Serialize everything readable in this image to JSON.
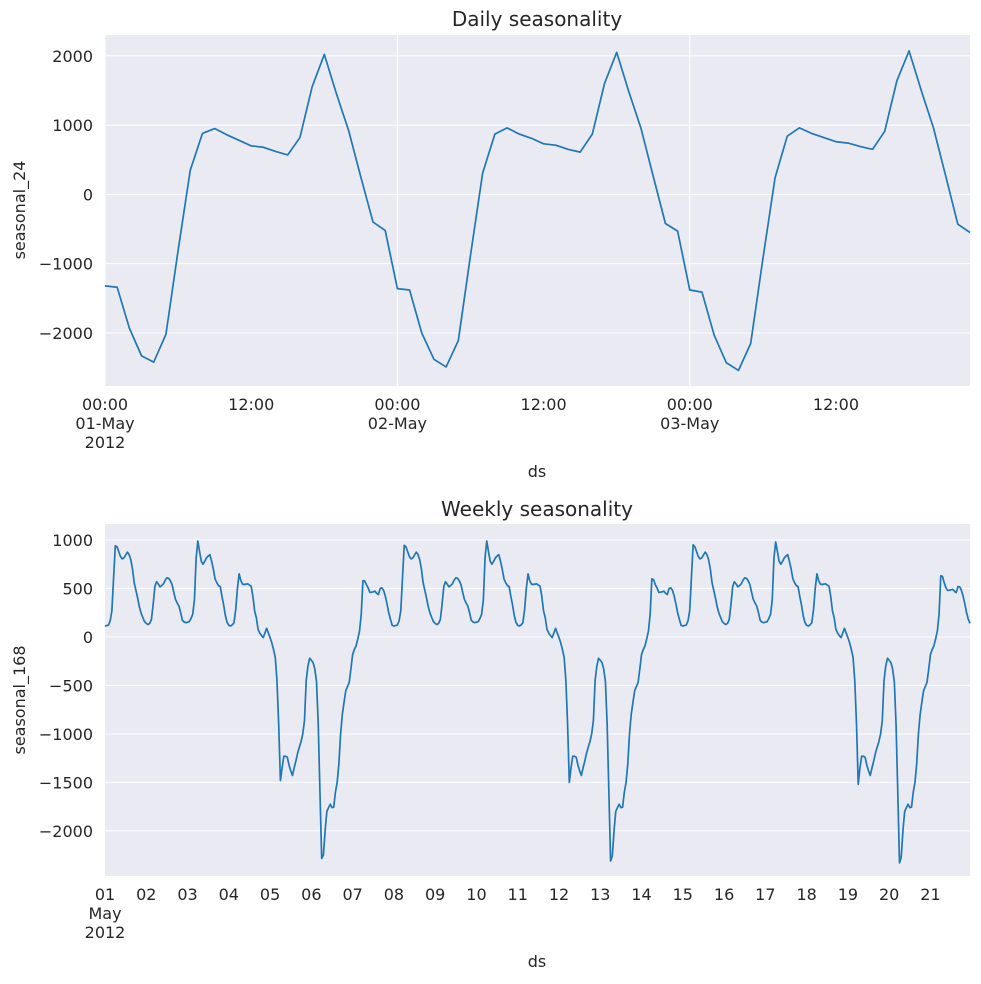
{
  "colors": {
    "plot_bg": "#eaeaf2",
    "grid": "#ffffff",
    "line": "#1f77b4",
    "text": "#262626"
  },
  "chart_data": [
    {
      "type": "line",
      "title": "Daily seasonality",
      "xlabel": "ds",
      "ylabel": "seasonal_24",
      "x_start": "2012-05-01 00:00",
      "x_freq": "1H",
      "xlim_hours": [
        0,
        71
      ],
      "ylim": [
        -2765,
        2300
      ],
      "yticks": [
        -2000,
        -1000,
        0,
        1000,
        2000
      ],
      "ytick_labels": [
        "−2000",
        "−1000",
        "0",
        "1000",
        "2000"
      ],
      "xticks_hours": [
        0,
        12,
        24,
        36,
        48,
        60
      ],
      "xtick_labels": [
        [
          "00:00",
          "01-May",
          "2012"
        ],
        [
          "12:00"
        ],
        [
          "00:00",
          "02-May"
        ],
        [
          "12:00"
        ],
        [
          "00:00",
          "03-May"
        ],
        [
          "12:00"
        ]
      ],
      "x_grid_hours": [
        0,
        24,
        48
      ],
      "grid": true,
      "values": [
        -1320,
        -1340,
        -1930,
        -2330,
        -2420,
        -2020,
        -810,
        350,
        880,
        950,
        860,
        780,
        700,
        680,
        620,
        570,
        820,
        1550,
        2020,
        1450,
        920,
        250,
        -400,
        -520,
        -1360,
        -1380,
        -2000,
        -2380,
        -2490,
        -2110,
        -880,
        310,
        870,
        960,
        870,
        810,
        730,
        710,
        650,
        610,
        870,
        1600,
        2050,
        1480,
        950,
        260,
        -420,
        -530,
        -1380,
        -1410,
        -2030,
        -2430,
        -2540,
        -2150,
        -930,
        240,
        840,
        960,
        880,
        820,
        760,
        740,
        690,
        650,
        910,
        1640,
        2070,
        1500,
        960,
        270,
        -430,
        -550
      ]
    },
    {
      "type": "line",
      "title": "Weekly seasonality",
      "xlabel": "ds",
      "ylabel": "seasonal_168",
      "x_start": "2012-05-01 00:00",
      "x_freq": "1H",
      "xlim_hours": [
        0,
        503
      ],
      "ylim": [
        -2465,
        1165
      ],
      "yticks": [
        -2000,
        -1500,
        -1000,
        -500,
        0,
        500,
        1000
      ],
      "ytick_labels": [
        "−2000",
        "−1500",
        "−1000",
        "−500",
        "0",
        "500",
        "1000"
      ],
      "xticks_hours": [
        0,
        24,
        48,
        72,
        96,
        120,
        144,
        168,
        192,
        216,
        240,
        264,
        288,
        312,
        336,
        360,
        384,
        408,
        432,
        456,
        480
      ],
      "xtick_labels": [
        [
          "01",
          "May",
          "2012"
        ],
        [
          "02"
        ],
        [
          "03"
        ],
        [
          "04"
        ],
        [
          "05"
        ],
        [
          "06"
        ],
        [
          "07"
        ],
        [
          "08"
        ],
        [
          "09"
        ],
        [
          "10"
        ],
        [
          "11"
        ],
        [
          "12"
        ],
        [
          "13"
        ],
        [
          "14"
        ],
        [
          "15"
        ],
        [
          "16"
        ],
        [
          "17"
        ],
        [
          "18"
        ],
        [
          "19"
        ],
        [
          "20"
        ],
        [
          "21"
        ]
      ],
      "x_grid_hours": [],
      "grid": true,
      "values": [
        113,
        118,
        123,
        165,
        270,
        610,
        940,
        930,
        880,
        830,
        805,
        815,
        845,
        875,
        850,
        798,
        700,
        558,
        480,
        400,
        310,
        245,
        200,
        158,
        140,
        128,
        140,
        180,
        335,
        520,
        570,
        545,
        517,
        530,
        548,
        585,
        610,
        605,
        580,
        541,
        460,
        387,
        350,
        318,
        250,
        171,
        155,
        147,
        152,
        158,
        190,
        233,
        380,
        815,
        990,
        880,
        780,
        750,
        780,
        815,
        835,
        849,
        780,
        700,
        600,
        560,
        530,
        520,
        420,
        330,
        220,
        150,
        120,
        113,
        125,
        147,
        280,
        500,
        651,
        580,
        545,
        541,
        545,
        548,
        535,
        524,
        420,
        270,
        199,
        80,
        40,
        15,
        -7,
        40,
        89,
        40,
        -7,
        -60,
        -130,
        -210,
        -450,
        -900,
        -1480,
        -1350,
        -1230,
        -1230,
        -1240,
        -1320,
        -1380,
        -1428,
        -1350,
        -1280,
        -1200,
        -1137,
        -1080,
        -1000,
        -863,
        -450,
        -300,
        -220,
        -240,
        -264,
        -330,
        -460,
        -900,
        -1600,
        -2284,
        -2250,
        -2000,
        -1800,
        -1760,
        -1725,
        -1760,
        -1755,
        -1600,
        -1500,
        -1308,
        -1000,
        -800,
        -675,
        -555,
        -510,
        -469,
        -330,
        -180,
        -130,
        -92,
        -20,
        60,
        233,
        580,
        578,
        540,
        507,
        460,
        462,
        466,
        472,
        450,
        438,
        500,
        507,
        480,
        421,
        340,
        250,
        182,
        120,
        113,
        118,
        123,
        165,
        270,
        610,
        945,
        930,
        880,
        830,
        805,
        815,
        845,
        875,
        850,
        798,
        700,
        558,
        480,
        400,
        310,
        245,
        200,
        158,
        140,
        128,
        140,
        180,
        335,
        520,
        570,
        545,
        517,
        530,
        548,
        585,
        610,
        605,
        580,
        541,
        460,
        387,
        350,
        318,
        250,
        171,
        155,
        147,
        152,
        158,
        190,
        233,
        380,
        815,
        990,
        880,
        780,
        750,
        780,
        815,
        835,
        849,
        780,
        700,
        600,
        560,
        530,
        520,
        420,
        330,
        220,
        150,
        120,
        113,
        125,
        147,
        280,
        500,
        651,
        580,
        545,
        541,
        545,
        548,
        535,
        524,
        420,
        270,
        199,
        80,
        40,
        15,
        -7,
        40,
        89,
        40,
        -7,
        -60,
        -130,
        -210,
        -450,
        -900,
        -1500,
        -1350,
        -1230,
        -1230,
        -1240,
        -1320,
        -1380,
        -1428,
        -1350,
        -1280,
        -1200,
        -1137,
        -1080,
        -1000,
        -863,
        -450,
        -300,
        -220,
        -240,
        -264,
        -330,
        -460,
        -900,
        -1600,
        -2310,
        -2260,
        -2000,
        -1800,
        -1760,
        -1725,
        -1760,
        -1755,
        -1600,
        -1500,
        -1308,
        -1000,
        -800,
        -675,
        -555,
        -510,
        -469,
        -330,
        -180,
        -130,
        -92,
        -20,
        60,
        233,
        600,
        590,
        540,
        507,
        460,
        462,
        466,
        472,
        450,
        438,
        500,
        507,
        480,
        421,
        340,
        250,
        182,
        120,
        113,
        118,
        123,
        165,
        270,
        610,
        950,
        930,
        880,
        830,
        805,
        815,
        845,
        875,
        850,
        798,
        700,
        558,
        480,
        400,
        310,
        245,
        200,
        158,
        140,
        128,
        140,
        180,
        335,
        520,
        570,
        545,
        517,
        530,
        548,
        585,
        610,
        605,
        580,
        541,
        460,
        387,
        350,
        318,
        250,
        171,
        155,
        147,
        152,
        158,
        190,
        233,
        380,
        815,
        980,
        880,
        780,
        750,
        780,
        815,
        835,
        849,
        780,
        700,
        600,
        560,
        530,
        520,
        420,
        330,
        220,
        150,
        120,
        113,
        125,
        147,
        280,
        500,
        651,
        580,
        545,
        541,
        545,
        548,
        535,
        524,
        420,
        270,
        199,
        80,
        40,
        15,
        -7,
        40,
        89,
        40,
        -7,
        -60,
        -130,
        -210,
        -450,
        -900,
        -1520,
        -1350,
        -1230,
        -1230,
        -1240,
        -1320,
        -1380,
        -1428,
        -1350,
        -1280,
        -1200,
        -1137,
        -1080,
        -1000,
        -863,
        -450,
        -300,
        -220,
        -240,
        -264,
        -330,
        -460,
        -900,
        -1600,
        -2330,
        -2270,
        -2000,
        -1800,
        -1760,
        -1725,
        -1760,
        -1755,
        -1600,
        -1500,
        -1308,
        -1000,
        -800,
        -675,
        -555,
        -510,
        -469,
        -330,
        -180,
        -130,
        -92,
        -20,
        60,
        233,
        630,
        625,
        560,
        507,
        480,
        482,
        486,
        492,
        470,
        458,
        520,
        517,
        480,
        421,
        340,
        250,
        182,
        140
      ]
    }
  ]
}
